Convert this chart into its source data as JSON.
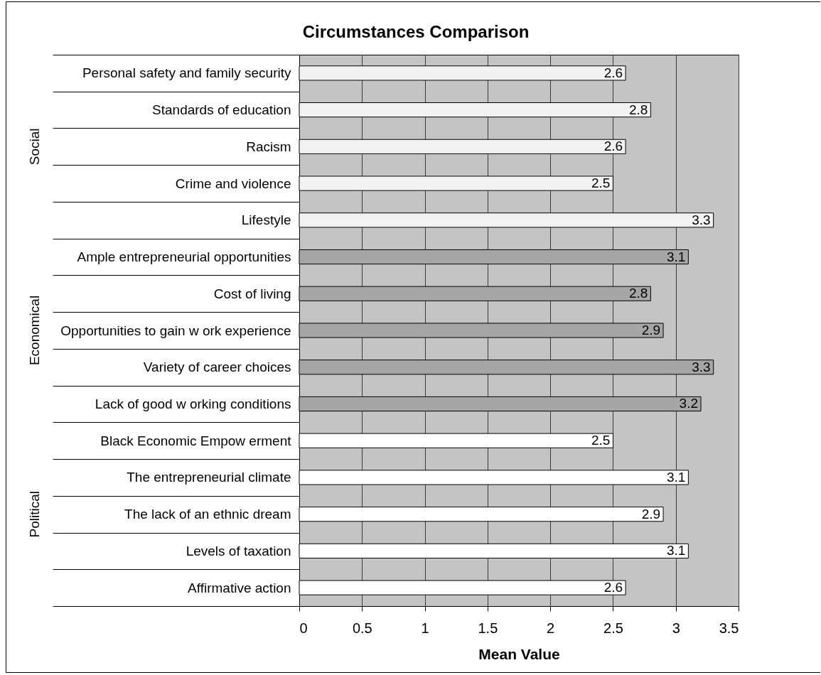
{
  "chart_data": {
    "type": "bar",
    "orientation": "horizontal",
    "title": "Circumstances Comparison",
    "xlabel": "Mean Value",
    "categories": [
      "Personal safety and family security",
      "Standards of education",
      "Racism",
      "Crime and violence",
      "Lifestyle",
      "Ample entrepreneurial opportunities",
      "Cost of living",
      "Opportunities to gain w ork experience",
      "Variety of career choices",
      "Lack of good w orking conditions",
      "Black Economic Empow erment",
      "The entrepreneurial climate",
      "The lack of an ethnic dream",
      "Levels of taxation",
      "Affirmative action"
    ],
    "values": [
      2.6,
      2.8,
      2.6,
      2.5,
      3.3,
      3.1,
      2.8,
      2.9,
      3.3,
      3.2,
      2.5,
      3.1,
      2.9,
      3.1,
      2.6
    ],
    "colors": [
      "#f2f2f2",
      "#f2f2f2",
      "#f2f2f2",
      "#f2f2f2",
      "#f2f2f2",
      "#a6a6a6",
      "#a6a6a6",
      "#a6a6a6",
      "#a6a6a6",
      "#a6a6a6",
      "#ffffff",
      "#ffffff",
      "#ffffff",
      "#ffffff",
      "#ffffff"
    ],
    "xlim": [
      0,
      3.5
    ],
    "xticks": [
      0,
      0.5,
      1,
      1.5,
      2,
      2.5,
      3,
      3.5
    ],
    "grid": "x",
    "data_labels": true,
    "annotations": [
      "Social",
      "Economical",
      "Political"
    ]
  }
}
